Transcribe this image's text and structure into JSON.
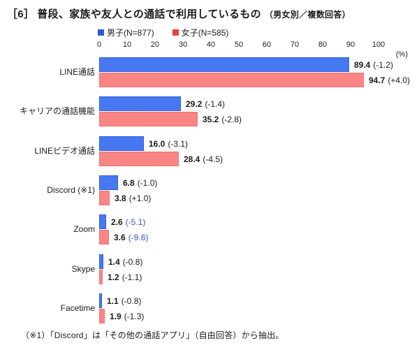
{
  "title": {
    "index": "［6］",
    "main": "普段、家族や友人との通話で利用しているもの",
    "sub": "（男女別／複数回答）"
  },
  "legend": [
    {
      "label": "男子(N=877)",
      "color": "#2b59d8"
    },
    {
      "label": "女子(N=585)",
      "color": "#e84040"
    }
  ],
  "axis": {
    "ticks": [
      0,
      10,
      20,
      30,
      40,
      50,
      60,
      70,
      80,
      90,
      100
    ],
    "unit_label": "(%)",
    "max": 100
  },
  "colors": {
    "male_bar": "#4678f2",
    "female_bar": "#f98585",
    "value_text": "#1a1a1a",
    "change_highlight": "#3355cc"
  },
  "chart_data": {
    "type": "bar",
    "orientation": "horizontal",
    "title": "［6］普段、家族や友人との通話で利用しているもの（男女別／複数回答）",
    "xlabel": "(%)",
    "xlim": [
      0,
      100
    ],
    "grid": false,
    "legend_position": "top",
    "categories": [
      "LINE通話",
      "キャリアの通話機能",
      "LINEビデオ通話",
      "Discord (※1)",
      "Zoom",
      "Skype",
      "Facetime"
    ],
    "series": [
      {
        "name": "男子(N=877)",
        "values": [
          89.4,
          29.2,
          16.0,
          6.8,
          2.6,
          1.4,
          1.1
        ],
        "changes": [
          "(-1.2)",
          "(-1.4)",
          "(-3.1)",
          "(-1.0)",
          "(-5.1)",
          "(-0.8)",
          "(-0.8)"
        ]
      },
      {
        "name": "女子(N=585)",
        "values": [
          94.7,
          35.2,
          28.4,
          3.8,
          3.6,
          1.2,
          1.9
        ],
        "changes": [
          "(+4.0)",
          "(-2.8)",
          "(-4.5)",
          "(+1.0)",
          "(-9.6)",
          "(-1.1)",
          "(-1.3)"
        ]
      }
    ],
    "highlight_change_row_index": 4
  },
  "footnote": "（※1）「Discord」は「その他の通話アプリ」（自由回答）から抽出。"
}
